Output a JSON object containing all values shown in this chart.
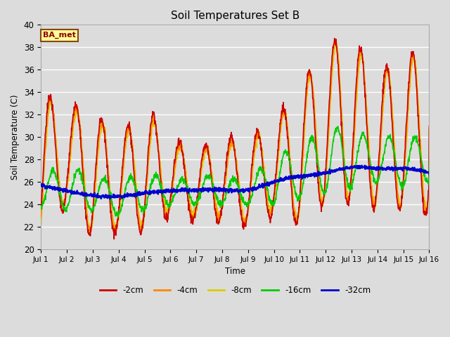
{
  "title": "Soil Temperatures Set B",
  "xlabel": "Time",
  "ylabel": "Soil Temperature (C)",
  "ylim": [
    20,
    40
  ],
  "xlim_days": 15,
  "annotation": "BA_met",
  "fig_bg": "#dcdcdc",
  "plot_bg": "#dcdcdc",
  "series": {
    "-2cm": {
      "color": "#cc0000",
      "lw": 1.2
    },
    "-4cm": {
      "color": "#ff8800",
      "lw": 1.2
    },
    "-8cm": {
      "color": "#ddcc00",
      "lw": 1.2
    },
    "-16cm": {
      "color": "#00cc00",
      "lw": 1.2
    },
    "-32cm": {
      "color": "#0000cc",
      "lw": 1.8
    }
  },
  "xtick_labels": [
    "Jul 1",
    "Jul 2",
    "Jul 3",
    "Jul 4",
    "Jul 5",
    "Jul 6",
    "Jul 7",
    "Jul 8",
    "Jul 9",
    "Jul 10",
    "Jul 11",
    "Jul 12",
    "Jul 13",
    "Jul 14",
    "Jul 15",
    "Jul 16"
  ],
  "ytick_values": [
    20,
    22,
    24,
    26,
    28,
    30,
    32,
    34,
    36,
    38,
    40
  ]
}
